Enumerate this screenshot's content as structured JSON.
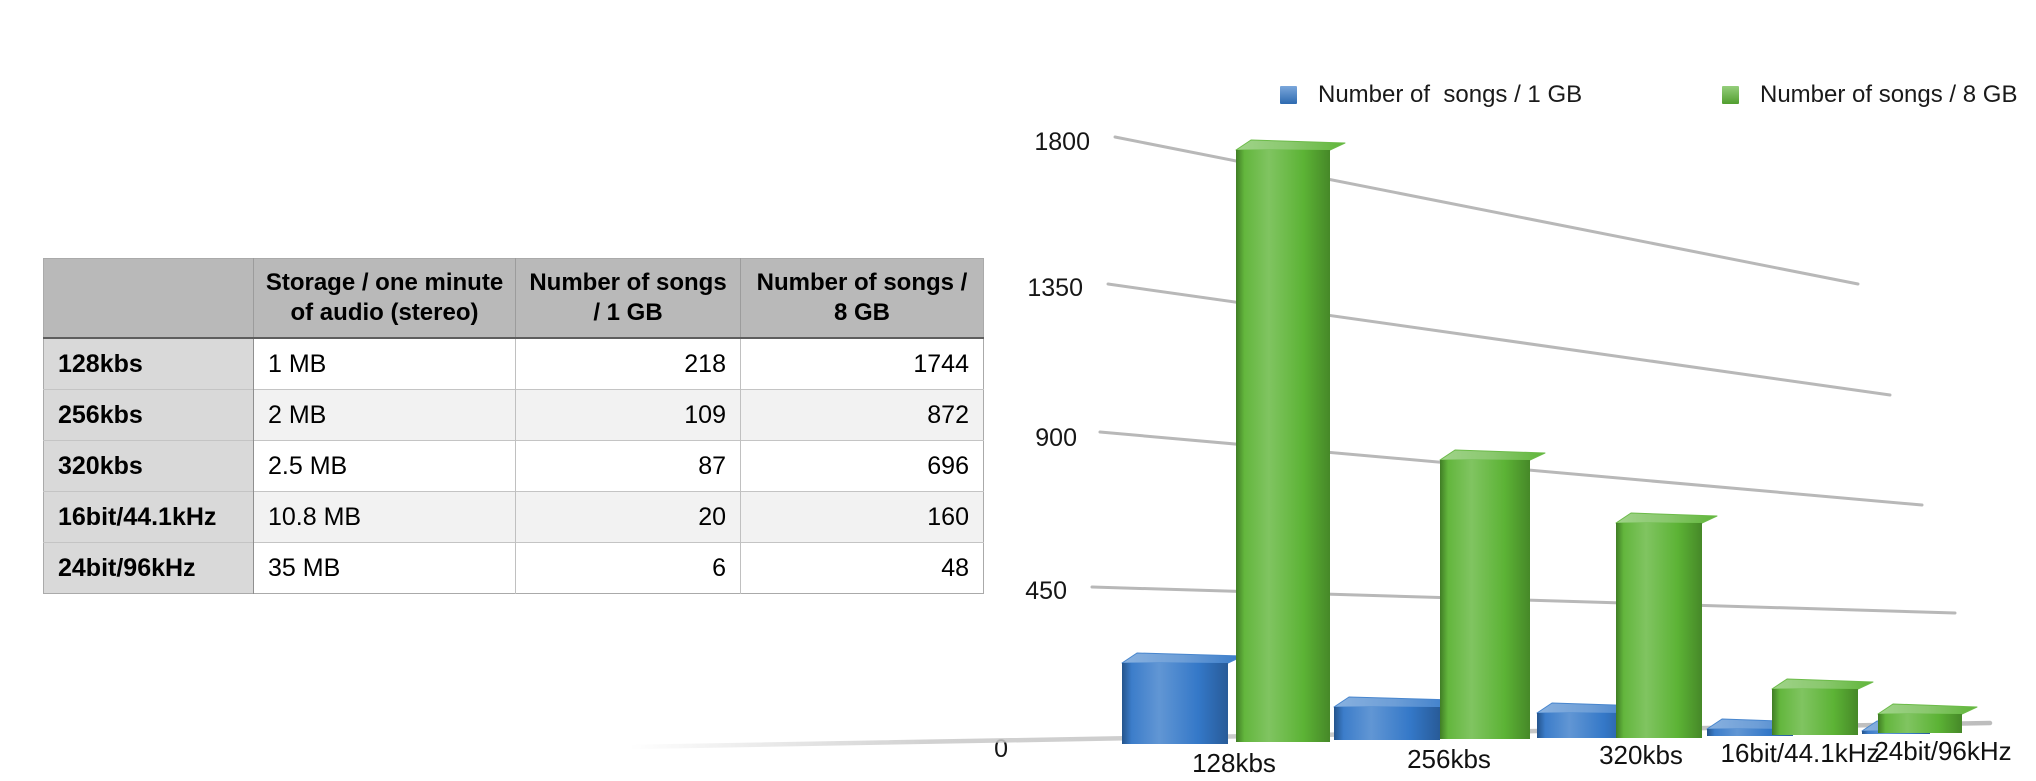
{
  "table": {
    "columns": [
      "",
      "Storage / one minute of audio (stereo)",
      "Number of songs / 1 GB",
      "Number of songs / 8 GB"
    ],
    "rows": [
      {
        "label": "128kbs",
        "storage": "1 MB",
        "per_1gb": "218",
        "per_8gb": "1744"
      },
      {
        "label": "256kbs",
        "storage": "2 MB",
        "per_1gb": "109",
        "per_8gb": "872"
      },
      {
        "label": "320kbs",
        "storage": "2.5 MB",
        "per_1gb": "87",
        "per_8gb": "696"
      },
      {
        "label": "16bit/44.1kHz",
        "storage": "10.8 MB",
        "per_1gb": "20",
        "per_8gb": "160"
      },
      {
        "label": "24bit/96kHz",
        "storage": "35 MB",
        "per_1gb": "6",
        "per_8gb": "48"
      }
    ]
  },
  "chart_data": {
    "type": "bar",
    "style": "3d-perspective",
    "title": "",
    "xlabel": "",
    "ylabel": "",
    "categories": [
      "128kbs",
      "256kbs",
      "320kbs",
      "16bit/44.1kHz",
      "24bit/96kHz"
    ],
    "series": [
      {
        "name": "Number of  songs / 1 GB",
        "color": "#3478c8",
        "values": [
          218,
          109,
          87,
          20,
          6
        ]
      },
      {
        "name": "Number of songs / 8 GB",
        "color": "#5cb335",
        "values": [
          1744,
          872,
          696,
          160,
          48
        ]
      }
    ],
    "yticks": [
      0,
      450,
      900,
      1350,
      1800
    ],
    "ylim": [
      0,
      1800
    ],
    "grid": true,
    "legend_position": "top",
    "gridline_color": "#b8b8b8"
  }
}
